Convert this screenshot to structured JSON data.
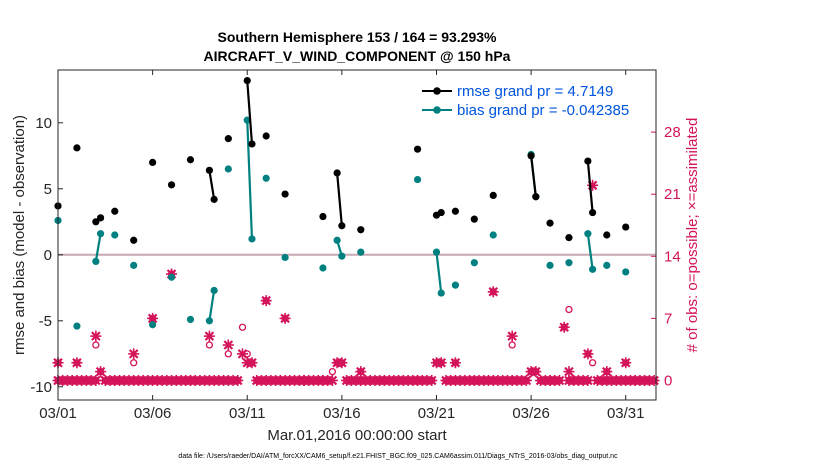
{
  "chart_data": {
    "type": "line",
    "title": "Southern Hemisphere 153 / 164 = 93.293%",
    "subtitle": "AIRCRAFT_V_WIND_COMPONENT @ 150 hPa",
    "xlabel": "Mar.01,2016 00:00:00 start",
    "ylabel": "rmse and bias (model - observation)",
    "y2label": "# of obs: o=possible; ×=assimilated",
    "xlim": [
      0,
      31.6
    ],
    "ylim": [
      -11,
      14
    ],
    "y2lim": [
      -2.2,
      35
    ],
    "x_ticks": [
      0,
      5,
      10,
      15,
      20,
      25,
      30
    ],
    "x_tick_labels": [
      "03/01",
      "03/06",
      "03/11",
      "03/16",
      "03/21",
      "03/26",
      "03/31"
    ],
    "y_ticks": [
      -10,
      -5,
      0,
      5,
      10
    ],
    "y_tick_labels": [
      "-10",
      "-5",
      "0",
      "5",
      "10"
    ],
    "y2_ticks": [
      0,
      7,
      14,
      21,
      28
    ],
    "y2_tick_labels": [
      "0",
      "7",
      "14",
      "21",
      "28"
    ],
    "legend": [
      "rmse grand pr = 4.7149",
      "bias grand pr = -0.042385"
    ],
    "legend_position": "top-right",
    "footer": "data file: /Users/raeder/DAI/ATM_forcXX/CAM6_setup/f.e21.FHIST_BGC.f09_025.CAM6assim.011/Diags_NTrS_2016-03/obs_diag_output.nc",
    "colors": {
      "rmse": "#000000",
      "bias": "#008080",
      "obs": "#d4145a",
      "zero_line": "#c8a8b4",
      "label": "#0055dd"
    },
    "series": [
      {
        "name": "rmse",
        "axis": "left",
        "points": [
          [
            0,
            3.7
          ],
          [
            1,
            8.1
          ],
          [
            2,
            2.5
          ],
          [
            2.25,
            2.8
          ],
          [
            3,
            3.3
          ],
          [
            4,
            1.1
          ],
          [
            5,
            7.0
          ],
          [
            6,
            5.3
          ],
          [
            7,
            7.2
          ],
          [
            8,
            6.4
          ],
          [
            8.25,
            4.2
          ],
          [
            9,
            8.8
          ],
          [
            10,
            13.2
          ],
          [
            10.25,
            8.4
          ],
          [
            11,
            9.0
          ],
          [
            12,
            4.6
          ],
          [
            14,
            2.9
          ],
          [
            14.75,
            6.2
          ],
          [
            15,
            2.2
          ],
          [
            16,
            1.9
          ],
          [
            19,
            8.0
          ],
          [
            20,
            3.0
          ],
          [
            20.25,
            3.2
          ],
          [
            21,
            3.3
          ],
          [
            22,
            2.7
          ],
          [
            23,
            4.5
          ],
          [
            25,
            7.5
          ],
          [
            25.25,
            4.4
          ],
          [
            26,
            2.4
          ],
          [
            27,
            1.3
          ],
          [
            28,
            7.1
          ],
          [
            28.25,
            3.2
          ],
          [
            29,
            1.5
          ],
          [
            30,
            2.1
          ]
        ],
        "connected_pairs": [
          [
            2,
            2.25
          ],
          [
            8,
            8.25
          ],
          [
            10,
            10.25
          ],
          [
            14.75,
            15
          ],
          [
            20,
            20.25
          ],
          [
            25,
            25.25
          ],
          [
            28,
            28.25
          ]
        ]
      },
      {
        "name": "bias",
        "axis": "left",
        "points": [
          [
            0,
            2.6
          ],
          [
            1,
            -5.4
          ],
          [
            2,
            -0.5
          ],
          [
            2.25,
            1.6
          ],
          [
            3,
            1.5
          ],
          [
            4,
            -0.8
          ],
          [
            5,
            -5.3
          ],
          [
            6,
            -1.7
          ],
          [
            7,
            -4.9
          ],
          [
            8,
            -5.0
          ],
          [
            8.25,
            -2.7
          ],
          [
            9,
            6.5
          ],
          [
            10,
            10.2
          ],
          [
            10.25,
            1.2
          ],
          [
            11,
            5.8
          ],
          [
            12,
            -0.2
          ],
          [
            14,
            -1.0
          ],
          [
            14.75,
            1.1
          ],
          [
            15,
            -0.1
          ],
          [
            16,
            0.2
          ],
          [
            19,
            5.7
          ],
          [
            20,
            0.2
          ],
          [
            20.25,
            -2.9
          ],
          [
            21,
            -2.3
          ],
          [
            22,
            -0.6
          ],
          [
            23,
            1.5
          ],
          [
            25,
            7.6
          ],
          [
            25.25,
            4.4
          ],
          [
            26,
            -0.8
          ],
          [
            27,
            -0.6
          ],
          [
            28,
            1.6
          ],
          [
            28.25,
            -1.1
          ],
          [
            29,
            -0.8
          ],
          [
            30,
            -1.3
          ]
        ],
        "connected_pairs": [
          [
            2,
            2.25
          ],
          [
            8,
            8.25
          ],
          [
            10,
            10.25
          ],
          [
            14.75,
            15
          ],
          [
            20,
            20.25
          ],
          [
            25,
            25.25
          ],
          [
            28,
            28.25
          ]
        ]
      },
      {
        "name": "obs possible",
        "axis": "right",
        "marker": "o",
        "x": [
          0,
          1,
          2,
          2.25,
          3,
          4,
          5,
          6,
          7,
          8,
          8.25,
          9,
          9.75,
          10,
          10.25,
          11,
          12,
          13,
          14,
          14.5,
          14.75,
          15,
          16,
          17,
          18,
          19,
          20,
          20.25,
          21,
          22,
          23,
          24,
          25,
          25.25,
          26,
          26.75,
          27,
          28,
          28.25,
          29,
          30,
          30.5,
          31
        ],
        "y": [
          2,
          2,
          4,
          1,
          0,
          2,
          7,
          12,
          0,
          4,
          0,
          3,
          6,
          3,
          2,
          9,
          7,
          0,
          0,
          1,
          2,
          2,
          1,
          0,
          0,
          0,
          2,
          2,
          2,
          0,
          10,
          4,
          1,
          1,
          0,
          6,
          8,
          3,
          2,
          1,
          2,
          0,
          0
        ]
      },
      {
        "name": "obs assimilated",
        "axis": "right",
        "marker": "x",
        "x": [
          0,
          1,
          2,
          2.25,
          3,
          4,
          5,
          6,
          7,
          8,
          8.25,
          9,
          9.75,
          10,
          10.25,
          11,
          12,
          13,
          14,
          14.5,
          14.75,
          15,
          16,
          17,
          18,
          19,
          20,
          20.25,
          21,
          22,
          23,
          24,
          25,
          25.25,
          26,
          26.75,
          27,
          28,
          28.25,
          29,
          30,
          30.5,
          31
        ],
        "y": [
          2,
          2,
          5,
          1,
          0,
          3,
          7,
          12,
          0,
          5,
          0,
          4,
          3,
          2,
          2,
          9,
          7,
          0,
          0,
          0,
          2,
          2,
          1,
          0,
          0,
          0,
          2,
          2,
          2,
          0,
          10,
          5,
          1,
          1,
          0,
          6,
          1,
          3,
          22,
          1,
          2,
          0,
          0
        ]
      }
    ],
    "obs_baseline_days": [
      0,
      0.25,
      0.5,
      0.75,
      1,
      1.25,
      1.5,
      1.75,
      2,
      2.5,
      2.75,
      3,
      3.25,
      3.5,
      3.75,
      4,
      4.25,
      4.5,
      4.75,
      5,
      5.25,
      5.5,
      5.75,
      6,
      6.25,
      6.5,
      6.75,
      7,
      7.25,
      7.5,
      7.75,
      8,
      8.5,
      8.75,
      9,
      9.25,
      9.5,
      10.5,
      10.75,
      11,
      11.25,
      11.5,
      11.75,
      12,
      12.25,
      12.5,
      12.75,
      13,
      13.25,
      13.5,
      13.75,
      14,
      14.25,
      15.25,
      15.5,
      15.75,
      16,
      16.25,
      16.5,
      16.75,
      17,
      17.25,
      17.5,
      17.75,
      18,
      18.25,
      18.5,
      18.75,
      19,
      19.25,
      19.5,
      19.75,
      20.5,
      20.75,
      21,
      21.25,
      21.5,
      21.75,
      22,
      22.25,
      22.5,
      22.75,
      23,
      23.25,
      23.5,
      23.75,
      24,
      24.25,
      24.5,
      24.75,
      25.5,
      25.75,
      26,
      26.25,
      26.5,
      27,
      27.25,
      27.5,
      27.75,
      28,
      28.5,
      28.75,
      29,
      29.25,
      29.5,
      29.75,
      30,
      30.25,
      30.5,
      30.75,
      31,
      31.25,
      31.5
    ]
  }
}
